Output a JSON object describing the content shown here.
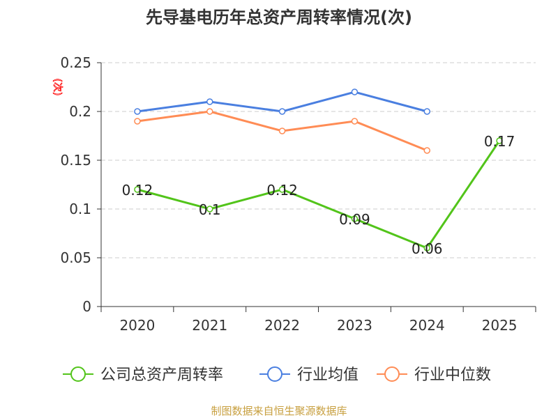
{
  "chart_data": {
    "type": "line",
    "title": "先导基电历年总资产周转率情况(次)",
    "ylabel": "(次)",
    "xlabel": "",
    "categories": [
      "2020",
      "2021",
      "2022",
      "2023",
      "2024",
      "2025"
    ],
    "ylim": [
      0,
      0.25
    ],
    "yticks": [
      "0",
      "0.05",
      "0.1",
      "0.15",
      "0.2",
      "0.25"
    ],
    "grid": true,
    "legend_position": "bottom",
    "series": [
      {
        "name": "公司总资产周转率",
        "color": "#52c41a",
        "values": [
          0.12,
          0.1,
          0.12,
          0.09,
          0.06,
          0.17
        ],
        "labels": [
          "0.12",
          "0.1",
          "0.12",
          "0.09",
          "0.06",
          "0.17"
        ]
      },
      {
        "name": "行业均值",
        "color": "#4a7fe0",
        "values": [
          0.2,
          0.21,
          0.2,
          0.22,
          0.2,
          null
        ]
      },
      {
        "name": "行业中位数",
        "color": "#ff8c55",
        "values": [
          0.19,
          0.2,
          0.18,
          0.19,
          0.16,
          null
        ]
      }
    ],
    "source": "制图数据来自恒生聚源数据库"
  }
}
